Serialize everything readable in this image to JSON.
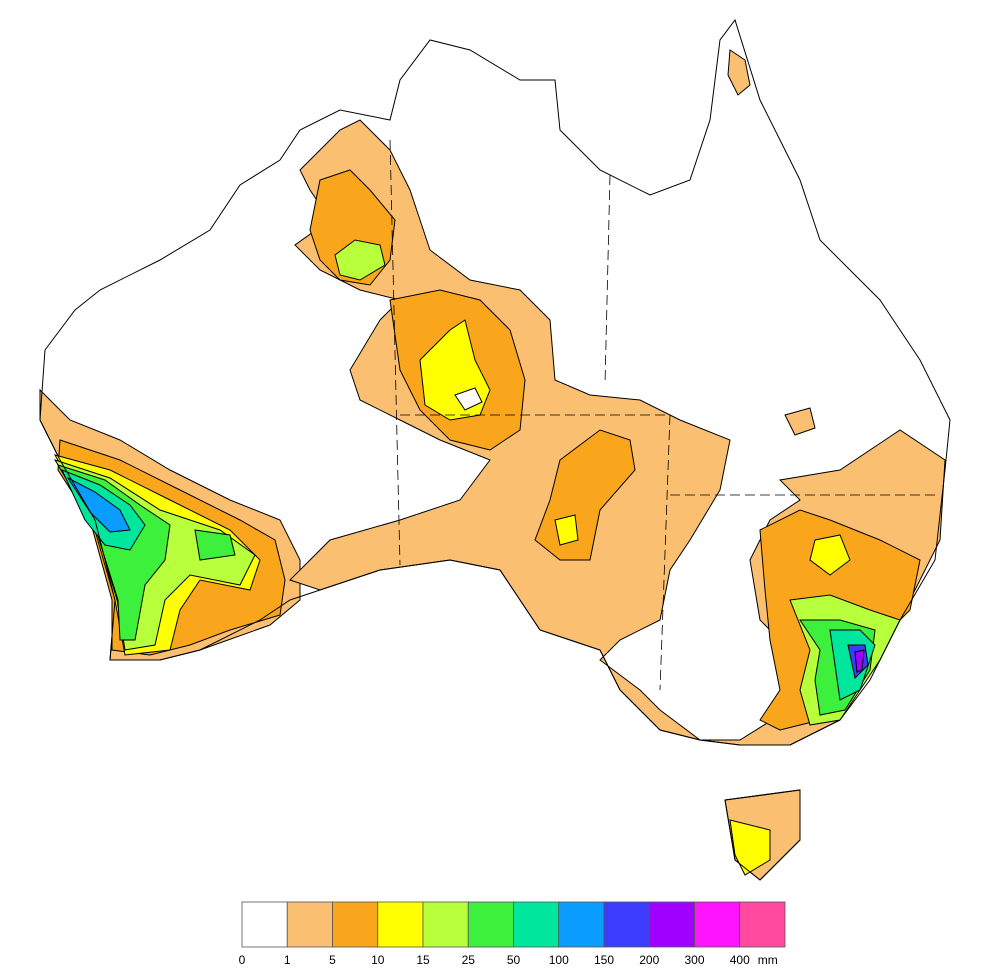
{
  "legend": {
    "boundaries": [
      0,
      1,
      5,
      10,
      15,
      25,
      50,
      100,
      150,
      200,
      300,
      400
    ],
    "unit": "mm",
    "colors": [
      "#ffffff",
      "#fbbf72",
      "#f9a61c",
      "#ffff00",
      "#b8ff3c",
      "#3cf03c",
      "#00e69c",
      "#0a9cff",
      "#3c3cff",
      "#a000ff",
      "#ff14ff",
      "#ff4aa0"
    ]
  }
}
